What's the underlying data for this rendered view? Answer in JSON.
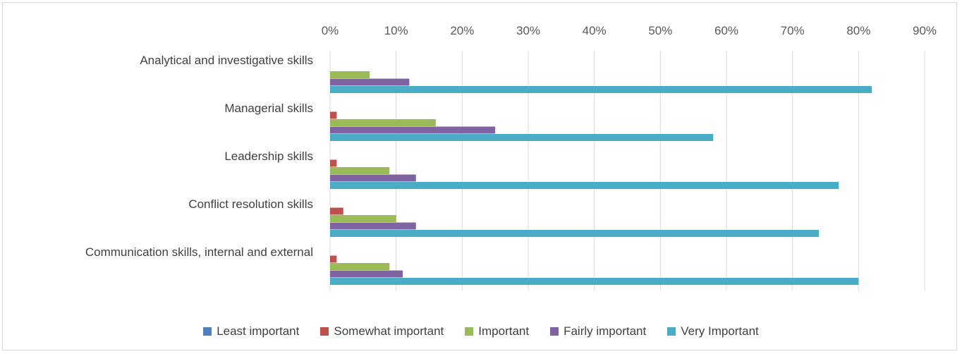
{
  "chart_data": {
    "type": "bar",
    "orientation": "horizontal",
    "categories": [
      "Analytical and investigative skills",
      "Managerial skills",
      "Leadership skills",
      "Conflict resolution skills",
      "Communication skills, internal and external"
    ],
    "series": [
      {
        "name": "Least important",
        "color": "#4f81bd",
        "values": [
          0,
          0,
          0,
          0,
          0
        ]
      },
      {
        "name": "Somewhat important",
        "color": "#c0504d",
        "values": [
          0,
          1,
          1,
          2,
          1
        ]
      },
      {
        "name": "Important",
        "color": "#9bbb59",
        "values": [
          6,
          16,
          9,
          10,
          9
        ]
      },
      {
        "name": "Fairly important",
        "color": "#8064a2",
        "values": [
          12,
          25,
          13,
          13,
          11
        ]
      },
      {
        "name": "Very Important",
        "color": "#4bacc6",
        "values": [
          82,
          58,
          77,
          74,
          80
        ]
      }
    ],
    "xlim": [
      0,
      90
    ],
    "ticks": [
      "0%",
      "10%",
      "20%",
      "30%",
      "40%",
      "50%",
      "60%",
      "70%",
      "80%",
      "90%"
    ],
    "xaxis_position": "top",
    "grid": true,
    "legend": "bottom"
  }
}
